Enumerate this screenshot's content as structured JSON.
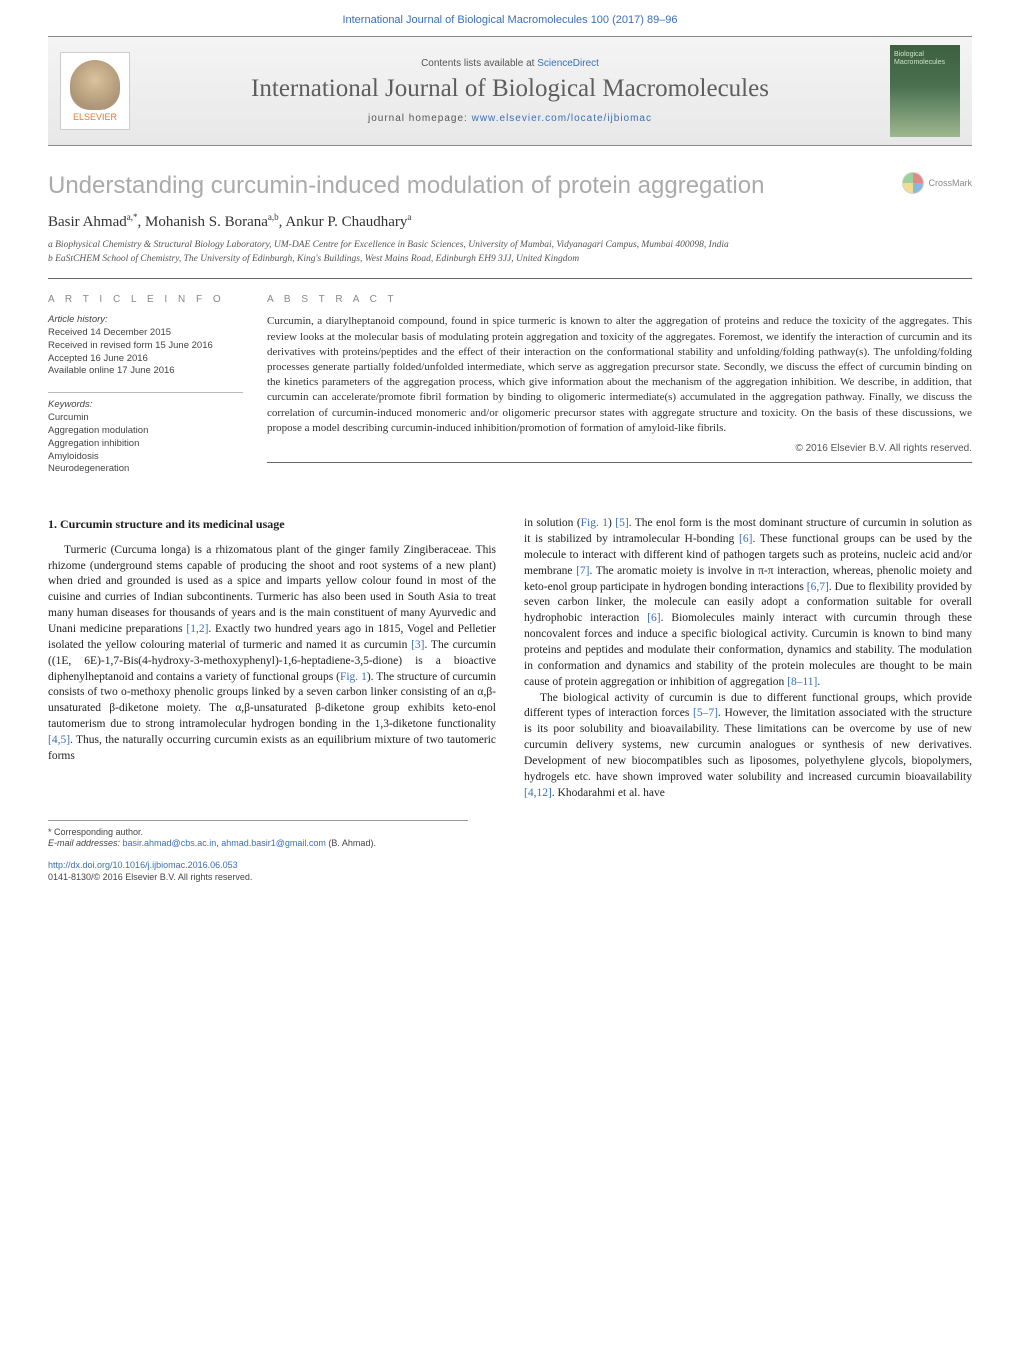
{
  "header_citation": "International Journal of Biological Macromolecules 100 (2017) 89–96",
  "banner": {
    "contents_prefix": "Contents lists available at ",
    "contents_link": "ScienceDirect",
    "journal_name": "International Journal of Biological Macromolecules",
    "homepage_prefix": "journal homepage: ",
    "homepage_url": "www.elsevier.com/locate/ijbiomac",
    "publisher_logo": "ELSEVIER",
    "cover_text": "Biological Macromolecules"
  },
  "article": {
    "title": "Understanding curcumin-induced modulation of protein aggregation",
    "crossmark": "CrossMark",
    "authors_html": "Basir Ahmad<sup>a,*</sup>, Mohanish S. Borana<sup>a,b</sup>, Ankur P. Chaudhary<sup>a</sup>",
    "affiliations": [
      "a Biophysical Chemistry & Structural Biology Laboratory, UM-DAE Centre for Excellence in Basic Sciences, University of Mumbai, Vidyanagari Campus, Mumbai 400098, India",
      "b EaStCHEM School of Chemistry, The University of Edinburgh, King's Buildings, West Mains Road, Edinburgh EH9 3JJ, United Kingdom"
    ]
  },
  "info": {
    "heading": "a r t i c l e   i n f o",
    "history_label": "Article history:",
    "history": [
      "Received 14 December 2015",
      "Received in revised form 15 June 2016",
      "Accepted 16 June 2016",
      "Available online 17 June 2016"
    ],
    "keywords_label": "Keywords:",
    "keywords": [
      "Curcumin",
      "Aggregation modulation",
      "Aggregation inhibition",
      "Amyloidosis",
      "Neurodegeneration"
    ]
  },
  "abstract": {
    "heading": "a b s t r a c t",
    "text": "Curcumin, a diarylheptanoid compound, found in spice turmeric is known to alter the aggregation of proteins and reduce the toxicity of the aggregates. This review looks at the molecular basis of modulating protein aggregation and toxicity of the aggregates. Foremost, we identify the interaction of curcumin and its derivatives with proteins/peptides and the effect of their interaction on the conformational stability and unfolding/folding pathway(s). The unfolding/folding processes generate partially folded/unfolded intermediate, which serve as aggregation precursor state. Secondly, we discuss the effect of curcumin binding on the kinetics parameters of the aggregation process, which give information about the mechanism of the aggregation inhibition. We describe, in addition, that curcumin can accelerate/promote fibril formation by binding to oligomeric intermediate(s) accumulated in the aggregation pathway. Finally, we discuss the correlation of curcumin-induced monomeric and/or oligomeric precursor states with aggregate structure and toxicity. On the basis of these discussions, we propose a model describing curcumin-induced inhibition/promotion of formation of amyloid-like fibrils.",
    "copyright": "© 2016 Elsevier B.V. All rights reserved."
  },
  "body": {
    "section_title": "1.  Curcumin structure and its medicinal usage",
    "col1_p1": "Turmeric (Curcuma longa) is a rhizomatous plant of the ginger family Zingiberaceae. This rhizome (underground stems capable of producing the shoot and root systems of a new plant) when dried and grounded is used as a spice and imparts yellow colour found in most of the cuisine and curries of Indian subcontinents. Turmeric has also been used in South Asia to treat many human diseases for thousands of years and is the main constituent of many Ayurvedic and Unani medicine preparations [1,2]. Exactly two hundred years ago in 1815, Vogel and Pelletier isolated the yellow colouring material of turmeric and named it as curcumin [3]. The curcumin ((1E, 6E)-1,7-Bis(4-hydroxy-3-methoxyphenyl)-1,6-heptadiene-3,5-dione) is a bioactive diphenylheptanoid and contains a variety of functional groups (Fig. 1). The structure of curcumin consists of two o-methoxy phenolic groups linked by a seven carbon linker consisting of an α,β-unsaturated β-diketone moiety. The α,β-unsaturated β-diketone group exhibits keto-enol tautomerism due to strong intramolecular hydrogen bonding in the 1,3-diketone functionality [4,5]. Thus, the naturally occurring curcumin exists as an equilibrium mixture of two tautomeric forms",
    "col2_p1": "in solution (Fig. 1) [5]. The enol form is the most dominant structure of curcumin in solution as it is stabilized by intramolecular H-bonding [6]. These functional groups can be used by the molecule to interact with different kind of pathogen targets such as proteins, nucleic acid and/or membrane [7]. The aromatic moiety is involve in π-π interaction, whereas, phenolic moiety and keto-enol group participate in hydrogen bonding interactions [6,7]. Due to flexibility provided by seven carbon linker, the molecule can easily adopt a conformation suitable for overall hydrophobic interaction [6]. Biomolecules mainly interact with curcumin through these noncovalent forces and induce a specific biological activity. Curcumin is known to bind many proteins and peptides and modulate their conformation, dynamics and stability. The modulation in conformation and dynamics and stability of the protein molecules are thought to be main cause of protein aggregation or inhibition of aggregation [8–11].",
    "col2_p2": "The biological activity of curcumin is due to different functional groups, which provide different types of interaction forces [5–7]. However, the limitation associated with the structure is its poor solubility and bioavailability. These limitations can be overcome by use of new curcumin delivery systems, new curcumin analogues or synthesis of new derivatives. Development of new biocompatibles such as liposomes, polyethylene glycols, biopolymers, hydrogels etc. have shown improved water solubility and increased curcumin bioavailability [4,12]. Khodarahmi et al. have"
  },
  "footer": {
    "corresponding": "* Corresponding author.",
    "email_label": "E-mail addresses: ",
    "email1": "basir.ahmad@cbs.ac.in",
    "email2": "ahmad.basir1@gmail.com",
    "email_author": " (B. Ahmad).",
    "doi": "http://dx.doi.org/10.1016/j.ijbiomac.2016.06.053",
    "issn_copyright": "0141-8130/© 2016 Elsevier B.V. All rights reserved."
  },
  "colors": {
    "link": "#3a6fb7",
    "title_gray": "#aaaaaa",
    "text": "#222222"
  }
}
